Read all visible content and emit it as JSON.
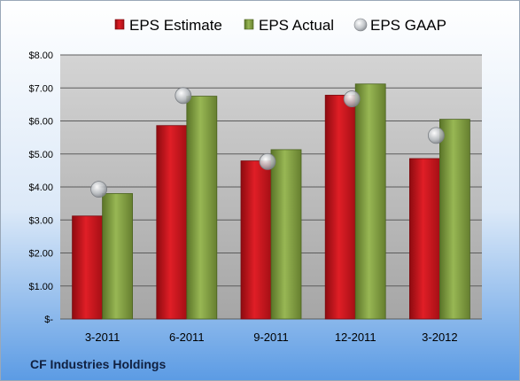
{
  "chart_data": {
    "type": "bar",
    "title": "",
    "xlabel": "",
    "ylabel": "",
    "categories": [
      "3-2011",
      "6-2011",
      "9-2011",
      "12-2011",
      "3-2012"
    ],
    "series": [
      {
        "name": "EPS Estimate",
        "kind": "bar",
        "color": "#c8141c",
        "values": [
          3.12,
          5.86,
          4.79,
          6.78,
          4.86
        ]
      },
      {
        "name": "EPS Actual",
        "kind": "bar",
        "color": "#7a9a3a",
        "values": [
          3.8,
          6.75,
          5.13,
          7.12,
          6.05
        ]
      },
      {
        "name": "EPS GAAP",
        "kind": "marker",
        "color": "#b4b8bc",
        "values": [
          3.93,
          6.77,
          4.77,
          6.67,
          5.56
        ]
      }
    ],
    "ylim": [
      0,
      8
    ],
    "yticks": [
      "$-",
      "$1.00",
      "$2.00",
      "$3.00",
      "$4.00",
      "$5.00",
      "$6.00",
      "$7.00",
      "$8.00"
    ],
    "grid": true,
    "legend_position": "top"
  },
  "footer": {
    "company": "CF Industries Holdings"
  },
  "colors": {
    "bg_top": "#ffffff",
    "bg_bottom": "#5b9be4",
    "plot_top": "#d2d2d2",
    "plot_bottom": "#a8a8a8"
  }
}
